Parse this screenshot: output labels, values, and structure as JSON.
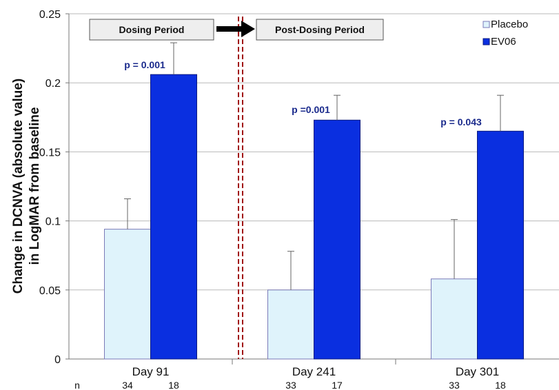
{
  "chart_data": {
    "type": "bar",
    "ylabel_lines": [
      "Change in DCNVA (absolute value)",
      "in LogMAR from baseline"
    ],
    "ylim": [
      0,
      0.25
    ],
    "yticks": [
      "0",
      "0.05",
      "0.1",
      "0.15",
      "0.2",
      "0.25"
    ],
    "grid": true,
    "legend_position": "top-right",
    "categories": [
      "Day 91",
      "Day 241",
      "Day 301"
    ],
    "series": [
      {
        "name": "Placebo",
        "color": "#dff3fb",
        "edge": "#7a7ab8",
        "values": [
          0.094,
          0.05,
          0.058
        ],
        "error_upper": [
          0.022,
          0.028,
          0.043
        ],
        "n": [
          "34",
          "33",
          "33"
        ]
      },
      {
        "name": "EV06",
        "color": "#0a2fe0",
        "edge": "#0a1a80",
        "values": [
          0.206,
          0.173,
          0.165
        ],
        "error_upper": [
          0.023,
          0.018,
          0.026
        ],
        "n": [
          "18",
          "17",
          "18"
        ]
      }
    ],
    "n_label": "n",
    "p_values": [
      "p = 0.001",
      "p =0.001",
      "p = 0.043"
    ],
    "periods": [
      {
        "label": "Dosing Period"
      },
      {
        "label": "Post-Dosing Period"
      }
    ],
    "period_divider_color": "#a01010"
  }
}
